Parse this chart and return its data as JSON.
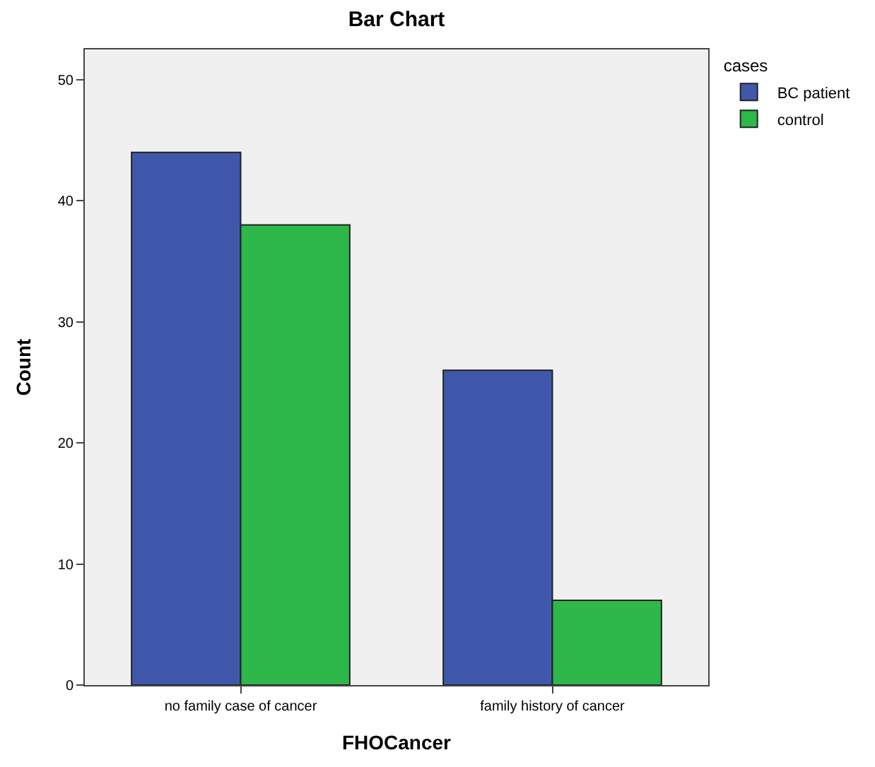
{
  "chart_data": {
    "type": "bar",
    "title": "Bar Chart",
    "xlabel": "FHOCancer",
    "ylabel": "Count",
    "legend_title": "cases",
    "categories": [
      "no family case of cancer",
      "family history of cancer"
    ],
    "series": [
      {
        "name": "BC patient",
        "color": "#3f58ab",
        "values": [
          44,
          26
        ]
      },
      {
        "name": "control",
        "color": "#2eb84a",
        "values": [
          38,
          7
        ]
      }
    ],
    "ylim": [
      0,
      52.5
    ],
    "yticks": [
      0,
      10,
      20,
      30,
      40,
      50
    ],
    "grid": false,
    "legend": "top right"
  }
}
